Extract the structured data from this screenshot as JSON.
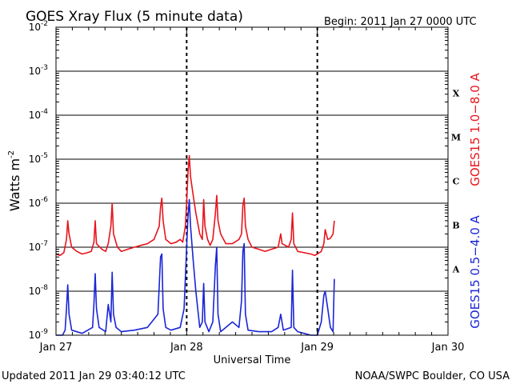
{
  "chart_data": {
    "type": "line",
    "title": "GOES Xray Flux (5 minute data)",
    "begin_label": "Begin:  2011 Jan 27 0000 UTC",
    "ylabel": "Watts m",
    "ylabel_sup": "-2",
    "xlabel": "Universal Time",
    "y_scale": "log",
    "ylim": [
      1e-09,
      0.01
    ],
    "xlim": [
      0,
      3
    ],
    "y_ticks": [
      {
        "base": "10",
        "exp": "-9",
        "value": 1e-09
      },
      {
        "base": "10",
        "exp": "-8",
        "value": 1e-08
      },
      {
        "base": "10",
        "exp": "-7",
        "value": 1e-07
      },
      {
        "base": "10",
        "exp": "-6",
        "value": 1e-06
      },
      {
        "base": "10",
        "exp": "-5",
        "value": 1e-05
      },
      {
        "base": "10",
        "exp": "-4",
        "value": 0.0001
      },
      {
        "base": "10",
        "exp": "-3",
        "value": 0.001
      },
      {
        "base": "10",
        "exp": "-2",
        "value": 0.01
      }
    ],
    "x_ticks": [
      {
        "label": "Jan 27",
        "day": 0
      },
      {
        "label": "Jan 28",
        "day": 1
      },
      {
        "label": "Jan 29",
        "day": 2
      },
      {
        "label": "Jan 30",
        "day": 3
      }
    ],
    "flare_classes": [
      {
        "label": "A",
        "value": 3.16e-08
      },
      {
        "label": "B",
        "value": 3.16e-07
      },
      {
        "label": "C",
        "value": 3.16e-06
      },
      {
        "label": "M",
        "value": 3.16e-05
      },
      {
        "label": "X",
        "value": 0.000316
      }
    ],
    "grid": true,
    "series": [
      {
        "name": "GOES15 1.0−8.0 A",
        "color": "#e8141c",
        "points": [
          [
            0.0,
            7e-08
          ],
          [
            0.03,
            6.5e-08
          ],
          [
            0.06,
            7.5e-08
          ],
          [
            0.08,
            1.5e-07
          ],
          [
            0.09,
            4e-07
          ],
          [
            0.1,
            2e-07
          ],
          [
            0.12,
            1e-07
          ],
          [
            0.16,
            8e-08
          ],
          [
            0.2,
            7e-08
          ],
          [
            0.24,
            7.5e-08
          ],
          [
            0.27,
            8e-08
          ],
          [
            0.29,
            1.3e-07
          ],
          [
            0.3,
            4e-07
          ],
          [
            0.31,
            1.2e-07
          ],
          [
            0.35,
            9e-08
          ],
          [
            0.38,
            8e-08
          ],
          [
            0.4,
            1.2e-07
          ],
          [
            0.42,
            3e-07
          ],
          [
            0.43,
            1e-06
          ],
          [
            0.44,
            2e-07
          ],
          [
            0.47,
            1e-07
          ],
          [
            0.5,
            8e-08
          ],
          [
            0.55,
            9e-08
          ],
          [
            0.6,
            1e-07
          ],
          [
            0.65,
            1.1e-07
          ],
          [
            0.7,
            1.2e-07
          ],
          [
            0.75,
            1.5e-07
          ],
          [
            0.79,
            3e-07
          ],
          [
            0.8,
            8e-07
          ],
          [
            0.81,
            1.3e-06
          ],
          [
            0.82,
            4e-07
          ],
          [
            0.84,
            1.5e-07
          ],
          [
            0.88,
            1.2e-07
          ],
          [
            0.92,
            1.3e-07
          ],
          [
            0.95,
            1.5e-07
          ],
          [
            0.97,
            1.3e-07
          ],
          [
            0.99,
            3e-07
          ],
          [
            1.0,
            1e-06
          ],
          [
            1.01,
            5e-06
          ],
          [
            1.02,
            1.2e-05
          ],
          [
            1.03,
            4e-06
          ],
          [
            1.05,
            1.5e-06
          ],
          [
            1.07,
            6e-07
          ],
          [
            1.1,
            2e-07
          ],
          [
            1.12,
            1.5e-07
          ],
          [
            1.13,
            1.2e-06
          ],
          [
            1.14,
            3e-07
          ],
          [
            1.16,
            1.5e-07
          ],
          [
            1.18,
            1.1e-07
          ],
          [
            1.2,
            1.5e-07
          ],
          [
            1.22,
            6e-07
          ],
          [
            1.23,
            1.5e-06
          ],
          [
            1.24,
            4e-07
          ],
          [
            1.26,
            2e-07
          ],
          [
            1.3,
            1.2e-07
          ],
          [
            1.35,
            1.2e-07
          ],
          [
            1.4,
            1.5e-07
          ],
          [
            1.42,
            2e-07
          ],
          [
            1.43,
            9e-07
          ],
          [
            1.44,
            1.3e-06
          ],
          [
            1.45,
            3e-07
          ],
          [
            1.47,
            1.5e-07
          ],
          [
            1.5,
            1e-07
          ],
          [
            1.55,
            9e-08
          ],
          [
            1.6,
            8e-08
          ],
          [
            1.65,
            9e-08
          ],
          [
            1.7,
            1e-07
          ],
          [
            1.72,
            2e-07
          ],
          [
            1.73,
            1.2e-07
          ],
          [
            1.78,
            1e-07
          ],
          [
            1.8,
            1.5e-07
          ],
          [
            1.81,
            6e-07
          ],
          [
            1.82,
            1.2e-07
          ],
          [
            1.85,
            8e-08
          ],
          [
            1.9,
            7.5e-08
          ],
          [
            1.95,
            7e-08
          ],
          [
            1.98,
            6.5e-08
          ],
          [
            2.0,
            7e-08
          ],
          [
            2.03,
            8e-08
          ],
          [
            2.05,
            1.2e-07
          ],
          [
            2.06,
            2.5e-07
          ],
          [
            2.08,
            1.5e-07
          ],
          [
            2.1,
            1.6e-07
          ],
          [
            2.12,
            2e-07
          ],
          [
            2.13,
            4e-07
          ]
        ]
      },
      {
        "name": "GOES15 0.5−4.0 A",
        "color": "#1a25d6",
        "points": [
          [
            0.0,
            1e-09
          ],
          [
            0.05,
            1e-09
          ],
          [
            0.07,
            1.3e-09
          ],
          [
            0.08,
            4e-09
          ],
          [
            0.09,
            1.4e-08
          ],
          [
            0.1,
            3e-09
          ],
          [
            0.12,
            1.3e-09
          ],
          [
            0.2,
            1.1e-09
          ],
          [
            0.28,
            1.5e-09
          ],
          [
            0.29,
            5e-09
          ],
          [
            0.3,
            2.5e-08
          ],
          [
            0.31,
            4e-09
          ],
          [
            0.33,
            1.5e-09
          ],
          [
            0.38,
            1.2e-09
          ],
          [
            0.4,
            5e-09
          ],
          [
            0.42,
            2e-09
          ],
          [
            0.43,
            2.7e-08
          ],
          [
            0.44,
            3e-09
          ],
          [
            0.46,
            1.5e-09
          ],
          [
            0.5,
            1.2e-09
          ],
          [
            0.6,
            1.3e-09
          ],
          [
            0.7,
            1.5e-09
          ],
          [
            0.78,
            3e-09
          ],
          [
            0.8,
            6e-08
          ],
          [
            0.81,
            7e-08
          ],
          [
            0.82,
            4e-09
          ],
          [
            0.84,
            1.5e-09
          ],
          [
            0.88,
            1.3e-09
          ],
          [
            0.95,
            1.5e-09
          ],
          [
            0.98,
            4e-09
          ],
          [
            1.0,
            1e-07
          ],
          [
            1.01,
            5e-07
          ],
          [
            1.02,
            1.2e-06
          ],
          [
            1.03,
            3e-07
          ],
          [
            1.05,
            5e-08
          ],
          [
            1.07,
            1e-08
          ],
          [
            1.1,
            1.5e-09
          ],
          [
            1.12,
            2e-09
          ],
          [
            1.13,
            1.5e-08
          ],
          [
            1.14,
            2e-09
          ],
          [
            1.17,
            1.2e-09
          ],
          [
            1.2,
            2e-09
          ],
          [
            1.22,
            4e-08
          ],
          [
            1.23,
            1e-07
          ],
          [
            1.24,
            3e-09
          ],
          [
            1.26,
            1.2e-09
          ],
          [
            1.3,
            1.5e-09
          ],
          [
            1.35,
            2e-09
          ],
          [
            1.4,
            1.5e-09
          ],
          [
            1.42,
            6e-09
          ],
          [
            1.43,
            8e-08
          ],
          [
            1.44,
            1.2e-07
          ],
          [
            1.45,
            3e-09
          ],
          [
            1.47,
            1.3e-09
          ],
          [
            1.55,
            1.2e-09
          ],
          [
            1.65,
            1.2e-09
          ],
          [
            1.7,
            1.5e-09
          ],
          [
            1.72,
            3e-09
          ],
          [
            1.74,
            1.3e-09
          ],
          [
            1.8,
            1.5e-09
          ],
          [
            1.81,
            3e-08
          ],
          [
            1.82,
            1.5e-09
          ],
          [
            1.85,
            1.2e-09
          ],
          [
            1.95,
            1e-09
          ],
          [
            2.0,
            1e-09
          ],
          [
            2.03,
            2e-09
          ],
          [
            2.05,
            8e-09
          ],
          [
            2.06,
            1e-08
          ],
          [
            2.08,
            4e-09
          ],
          [
            2.1,
            1.5e-09
          ],
          [
            2.12,
            1.2e-09
          ],
          [
            2.13,
            1.9e-08
          ]
        ]
      }
    ],
    "gaps": [
      1.0,
      2.0
    ]
  },
  "footer": {
    "updated": "Updated 2011 Jan 29 03:40:12 UTC",
    "source": "NOAA/SWPC Boulder, CO USA"
  }
}
